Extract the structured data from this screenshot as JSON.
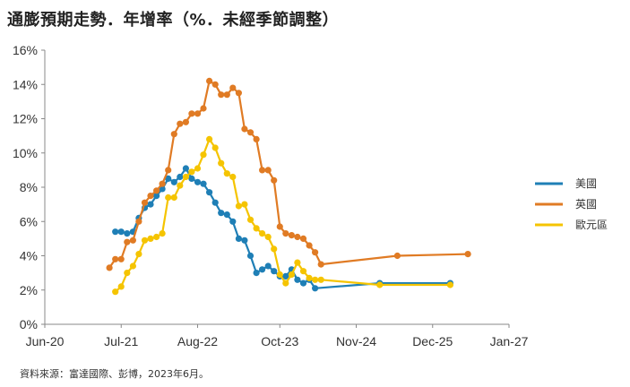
{
  "title": "通膨預期走勢．年增率（%．未經季節調整）",
  "source": "資料來源：富達國際、彭博，2023年6月。",
  "chart_data": {
    "type": "line",
    "title": "通膨預期走勢．年增率（%．未經季節調整）",
    "xlabel": "",
    "ylabel": "",
    "x_ticks": [
      "Jun-20",
      "Jul-21",
      "Aug-22",
      "Oct-23",
      "Nov-24",
      "Dec-25",
      "Jan-27"
    ],
    "xlim": [
      "2020-06",
      "2027-01"
    ],
    "y_ticks": [
      "0%",
      "2%",
      "4%",
      "6%",
      "8%",
      "10%",
      "12%",
      "14%",
      "16%"
    ],
    "ylim": [
      0,
      16
    ],
    "grid": false,
    "legend_position": "right",
    "series": [
      {
        "name": "美國",
        "color": "#1F7FB6",
        "points": [
          [
            "2021-06",
            5.4
          ],
          [
            "2021-07",
            5.4
          ],
          [
            "2021-08",
            5.3
          ],
          [
            "2021-09",
            5.4
          ],
          [
            "2021-10",
            6.2
          ],
          [
            "2021-11",
            6.8
          ],
          [
            "2021-12",
            7.0
          ],
          [
            "2022-01",
            7.5
          ],
          [
            "2022-02",
            7.9
          ],
          [
            "2022-03",
            8.5
          ],
          [
            "2022-04",
            8.3
          ],
          [
            "2022-05",
            8.6
          ],
          [
            "2022-06",
            9.1
          ],
          [
            "2022-07",
            8.5
          ],
          [
            "2022-08",
            8.3
          ],
          [
            "2022-09",
            8.2
          ],
          [
            "2022-10",
            7.7
          ],
          [
            "2022-11",
            7.1
          ],
          [
            "2022-12",
            6.5
          ],
          [
            "2023-01",
            6.4
          ],
          [
            "2023-02",
            6.0
          ],
          [
            "2023-03",
            5.0
          ],
          [
            "2023-04",
            4.9
          ],
          [
            "2023-05",
            4.0
          ],
          [
            "2023-06",
            3.0
          ],
          [
            "2023-07",
            3.2
          ],
          [
            "2023-08",
            3.4
          ],
          [
            "2023-09",
            3.1
          ],
          [
            "2023-10",
            2.8
          ],
          [
            "2023-11",
            2.8
          ],
          [
            "2023-12",
            3.2
          ],
          [
            "2024-01",
            2.6
          ],
          [
            "2024-02",
            2.4
          ],
          [
            "2024-03",
            2.6
          ],
          [
            "2024-04",
            2.1
          ],
          [
            "2025-03",
            2.4
          ],
          [
            "2026-03",
            2.4
          ]
        ]
      },
      {
        "name": "英國",
        "color": "#E07B24",
        "points": [
          [
            "2021-05",
            3.3
          ],
          [
            "2021-06",
            3.8
          ],
          [
            "2021-07",
            3.8
          ],
          [
            "2021-08",
            4.8
          ],
          [
            "2021-09",
            4.9
          ],
          [
            "2021-10",
            6.0
          ],
          [
            "2021-11",
            7.1
          ],
          [
            "2021-12",
            7.5
          ],
          [
            "2022-01",
            7.8
          ],
          [
            "2022-02",
            8.2
          ],
          [
            "2022-03",
            9.0
          ],
          [
            "2022-04",
            11.1
          ],
          [
            "2022-05",
            11.7
          ],
          [
            "2022-06",
            11.8
          ],
          [
            "2022-07",
            12.3
          ],
          [
            "2022-08",
            12.3
          ],
          [
            "2022-09",
            12.6
          ],
          [
            "2022-10",
            14.2
          ],
          [
            "2022-11",
            14.0
          ],
          [
            "2022-12",
            13.4
          ],
          [
            "2023-01",
            13.4
          ],
          [
            "2023-02",
            13.8
          ],
          [
            "2023-03",
            13.5
          ],
          [
            "2023-04",
            11.4
          ],
          [
            "2023-05",
            11.2
          ],
          [
            "2023-06",
            10.8
          ],
          [
            "2023-07",
            9.0
          ],
          [
            "2023-08",
            9.0
          ],
          [
            "2023-09",
            8.4
          ],
          [
            "2023-10",
            5.7
          ],
          [
            "2023-11",
            5.3
          ],
          [
            "2023-12",
            5.2
          ],
          [
            "2024-01",
            5.1
          ],
          [
            "2024-02",
            5.0
          ],
          [
            "2024-03",
            4.6
          ],
          [
            "2024-04",
            4.2
          ],
          [
            "2024-05",
            3.5
          ],
          [
            "2025-06",
            4.0
          ],
          [
            "2026-06",
            4.1
          ]
        ]
      },
      {
        "name": "歐元區",
        "color": "#F5C400",
        "points": [
          [
            "2021-06",
            1.9
          ],
          [
            "2021-07",
            2.2
          ],
          [
            "2021-08",
            3.0
          ],
          [
            "2021-09",
            3.4
          ],
          [
            "2021-10",
            4.1
          ],
          [
            "2021-11",
            4.9
          ],
          [
            "2021-12",
            5.0
          ],
          [
            "2022-01",
            5.1
          ],
          [
            "2022-02",
            5.3
          ],
          [
            "2022-03",
            7.4
          ],
          [
            "2022-04",
            7.4
          ],
          [
            "2022-05",
            8.1
          ],
          [
            "2022-06",
            8.6
          ],
          [
            "2022-07",
            8.9
          ],
          [
            "2022-08",
            9.1
          ],
          [
            "2022-09",
            9.9
          ],
          [
            "2022-10",
            10.8
          ],
          [
            "2022-11",
            10.3
          ],
          [
            "2022-12",
            9.4
          ],
          [
            "2023-01",
            8.8
          ],
          [
            "2023-02",
            8.6
          ],
          [
            "2023-03",
            6.9
          ],
          [
            "2023-04",
            7.0
          ],
          [
            "2023-05",
            6.1
          ],
          [
            "2023-06",
            5.6
          ],
          [
            "2023-07",
            5.3
          ],
          [
            "2023-08",
            5.1
          ],
          [
            "2023-09",
            4.4
          ],
          [
            "2023-10",
            2.9
          ],
          [
            "2023-11",
            2.4
          ],
          [
            "2023-12",
            2.9
          ],
          [
            "2024-01",
            3.6
          ],
          [
            "2024-02",
            3.1
          ],
          [
            "2024-03",
            2.7
          ],
          [
            "2024-04",
            2.6
          ],
          [
            "2024-05",
            2.6
          ],
          [
            "2025-03",
            2.3
          ],
          [
            "2026-03",
            2.3
          ]
        ]
      }
    ]
  }
}
